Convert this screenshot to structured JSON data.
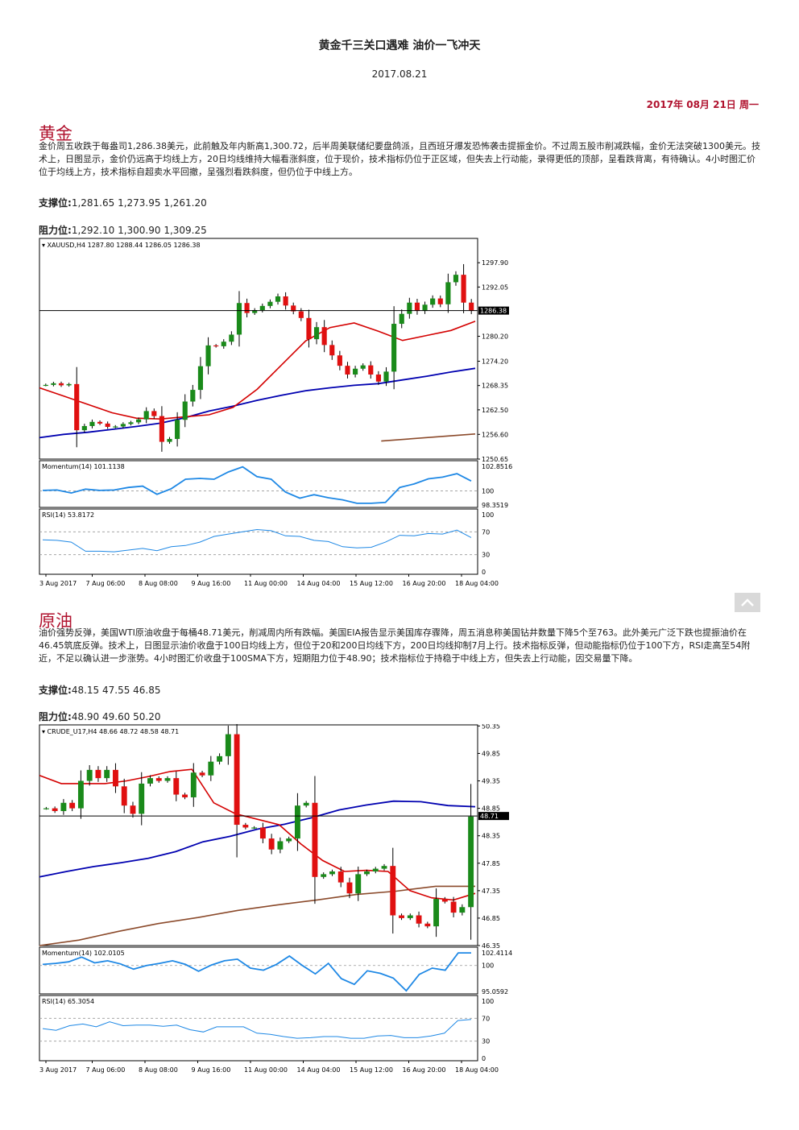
{
  "header": {
    "title": "黄金千三关口遇难 油价一飞冲天",
    "date": "2017.08.21",
    "day": "2017年 08月 21日 周一"
  },
  "gold": {
    "heading": "黄金",
    "body": "金价周五收跌于每盎司1,286.38美元，此前触及年内新高1,300.72，后半周美联储纪要盘鸽派，且西班牙爆发恐怖袭击提振金价。不过周五股市削减跌幅，金价无法突破1300美元。技术上，日图显示，金价仍远高于均线上方，20日均线维持大幅看涨斜度，位于现价，技术指标仍位于正区域，但失去上行动能，录得更低的顶部，呈看跌背离，有待确认。4小时图汇价位于均线上方，技术指标自超卖水平回撤，呈强烈看跌斜度，但仍位于中线上方。",
    "support_label": "支撑位:",
    "support_values": "1,281.65 1,273.95 1,261.20",
    "resistance_label": "阻力位:",
    "resistance_values": "1,292.10 1,300.90 1,309.25"
  },
  "oil": {
    "heading": "原油",
    "body": "油价强势反弹，美国WTI原油收盘于每桶48.71美元，削减周内所有跌幅。美国EIA报告显示美国库存骤降，周五消息称美国钻井数量下降5个至763。此外美元广泛下跌也提振油价在46.45筑底反弹。技术上，日图显示油价收盘于100日均线上方，但位于20和200日均线下方，200日均线抑制7月上行。技术指标反弹，但动能指标仍位于100下方，RSI走高至54附近，不足以确认进一步涨势。4小时图汇价收盘于100SMA下方，短期阻力位于48.90；技术指标位于持稳于中线上方，但失去上行动能，因交易量下降。",
    "support_label": "支撑位:",
    "support_values": "48.15 47.55 46.85",
    "resistance_label": "阻力位:",
    "resistance_values": "48.90 49.60 50.20"
  },
  "scroll_top_icon": "chevron-up-icon",
  "chart_data": [
    {
      "type": "candlestick",
      "symbol_label": "XAUUSD,H4  1287.80 1288.44 1286.05 1286.38",
      "ylim": [
        1250.65,
        1303.75
      ],
      "yticks": [
        "1297.90",
        "1292.05",
        "1280.20",
        "1274.20",
        "1268.35",
        "1262.50",
        "1256.60",
        "1250.65"
      ],
      "current_price": "1286.38",
      "x_tick_labels": [
        "3 Aug 2017",
        "7 Aug 06:00",
        "8 Aug 08:00",
        "9 Aug 16:00",
        "11 Aug 00:00",
        "14 Aug 04:00",
        "15 Aug 12:00",
        "16 Aug 20:00",
        "18 Aug 04:00"
      ],
      "close": [
        1268.5,
        1268.9,
        1268.4,
        1268.7,
        1257.6,
        1258.6,
        1259.6,
        1259.2,
        1258.4,
        1258.5,
        1259.1,
        1259.5,
        1260.2,
        1262.2,
        1261.0,
        1254.8,
        1255.5,
        1260.1,
        1264.5,
        1267.3,
        1273.0,
        1278.0,
        1277.8,
        1278.9,
        1280.6,
        1288.2,
        1285.8,
        1286.5,
        1287.5,
        1288.5,
        1289.8,
        1287.6,
        1286.2,
        1284.6,
        1279.5,
        1282.4,
        1278.1,
        1275.6,
        1273.1,
        1271.0,
        1272.4,
        1273.2,
        1271.0,
        1269.3,
        1271.7,
        1283.2,
        1285.6,
        1288.3,
        1286.3,
        1287.8,
        1289.3,
        1287.9,
        1293.2,
        1295.0,
        1288.3,
        1286.4
      ],
      "ma_fast": [
        1267.8,
        1265.8,
        1263.8,
        1261.8,
        1260.5,
        1260.3,
        1260.8,
        1261.3,
        1263.1,
        1267.5,
        1273.3,
        1279.1,
        1282.3,
        1283.4,
        1281.4,
        1279.2,
        1280.4,
        1281.6,
        1283.8
      ],
      "ma_slow": [
        1255.8,
        1256.6,
        1257.1,
        1257.8,
        1258.5,
        1259.3,
        1260.6,
        1262.2,
        1263.4,
        1264.8,
        1266.0,
        1267.1,
        1267.8,
        1268.4,
        1268.8,
        1269.7,
        1270.6,
        1271.6,
        1272.5
      ],
      "ma_long": [
        1255.0,
        1256.7
      ],
      "indicators": [
        {
          "label": "Momentum(14) 101.1138",
          "ticks": [
            "102.8516",
            "100",
            "98.3519"
          ],
          "values": [
            100.05,
            100.1,
            99.75,
            100.2,
            100.05,
            100.1,
            100.4,
            100.55,
            99.6,
            100.25,
            101.35,
            101.45,
            101.35,
            102.2,
            102.8,
            101.65,
            101.35,
            99.85,
            99.15,
            99.55,
            99.2,
            98.95,
            98.55,
            98.55,
            98.65,
            100.4,
            100.8,
            101.4,
            101.6,
            102.0,
            101.15
          ]
        },
        {
          "label": "RSI(14) 53.8172",
          "ticks": [
            "100",
            "70",
            "30",
            "0"
          ],
          "values": [
            56,
            55,
            52,
            36,
            36,
            35,
            38,
            41,
            37,
            44,
            46,
            52,
            62,
            66,
            70,
            74,
            72,
            63,
            62,
            55,
            53,
            44,
            42,
            43,
            52,
            64,
            63,
            67,
            66,
            73,
            60
          ]
        }
      ]
    },
    {
      "type": "candlestick",
      "symbol_label": "CRUDE_U17,H4  48.66 48.72 48.58 48.71",
      "ylim": [
        46.35,
        50.37
      ],
      "yticks": [
        "50.35",
        "49.85",
        "49.35",
        "48.85",
        "48.35",
        "47.85",
        "47.35",
        "46.85",
        "46.35"
      ],
      "current_price": "48.71",
      "x_tick_labels": [
        "3 Aug 2017",
        "7 Aug 06:00",
        "8 Aug 08:00",
        "9 Aug 16:00",
        "11 Aug 00:00",
        "14 Aug 04:00",
        "15 Aug 12:00",
        "16 Aug 20:00",
        "18 Aug 04:00"
      ],
      "close": [
        48.85,
        48.8,
        48.95,
        48.85,
        49.35,
        49.55,
        49.4,
        49.55,
        49.25,
        48.9,
        48.75,
        49.3,
        49.4,
        49.35,
        49.4,
        49.1,
        49.05,
        49.5,
        49.45,
        49.7,
        49.8,
        50.2,
        48.55,
        48.5,
        48.5,
        48.3,
        48.1,
        48.25,
        48.3,
        48.9,
        48.95,
        47.6,
        47.65,
        47.7,
        47.5,
        47.3,
        47.65,
        47.7,
        47.75,
        47.8,
        46.9,
        46.85,
        46.9,
        46.75,
        46.7,
        47.2,
        47.15,
        46.95,
        47.05,
        48.7
      ],
      "ma_fast": [
        49.45,
        49.3,
        49.3,
        49.3,
        49.35,
        49.43,
        49.52,
        49.56,
        48.95,
        48.75,
        48.65,
        48.55,
        48.2,
        47.9,
        47.7,
        47.72,
        47.7,
        47.35,
        47.22,
        47.18,
        47.3
      ],
      "ma_slow": [
        47.6,
        47.7,
        47.79,
        47.86,
        47.94,
        48.06,
        48.24,
        48.34,
        48.47,
        48.56,
        48.68,
        48.82,
        48.91,
        48.98,
        48.97,
        48.9,
        48.88
      ],
      "ma_long": [
        46.35,
        46.45,
        46.61,
        46.75,
        46.86,
        46.99,
        47.09,
        47.18,
        47.28,
        47.34,
        47.43,
        47.43
      ],
      "indicators": [
        {
          "label": "Momentum(14) 102.0105",
          "ticks": [
            "102.4114",
            "100",
            "95.0592"
          ],
          "values": [
            100.2,
            100.4,
            100.7,
            101.6,
            100.5,
            100.9,
            100.3,
            99.3,
            100.0,
            100.4,
            100.9,
            100.2,
            98.9,
            100.1,
            100.9,
            101.2,
            99.5,
            99.1,
            100.2,
            101.8,
            100.0,
            98.4,
            100.4,
            97.5,
            96.4,
            99.0,
            98.5,
            97.6,
            95.2,
            98.3,
            99.5,
            99.1,
            102.4,
            102.4
          ]
        },
        {
          "label": "RSI(14) 65.3054",
          "ticks": [
            "100",
            "70",
            "30",
            "0"
          ],
          "values": [
            52,
            49,
            57,
            60,
            55,
            64,
            57,
            58,
            58,
            56,
            58,
            50,
            46,
            55,
            55,
            55,
            44,
            42,
            38,
            35,
            36,
            38,
            38,
            35,
            35,
            39,
            40,
            36,
            36,
            39,
            44,
            66,
            68
          ]
        }
      ]
    }
  ]
}
